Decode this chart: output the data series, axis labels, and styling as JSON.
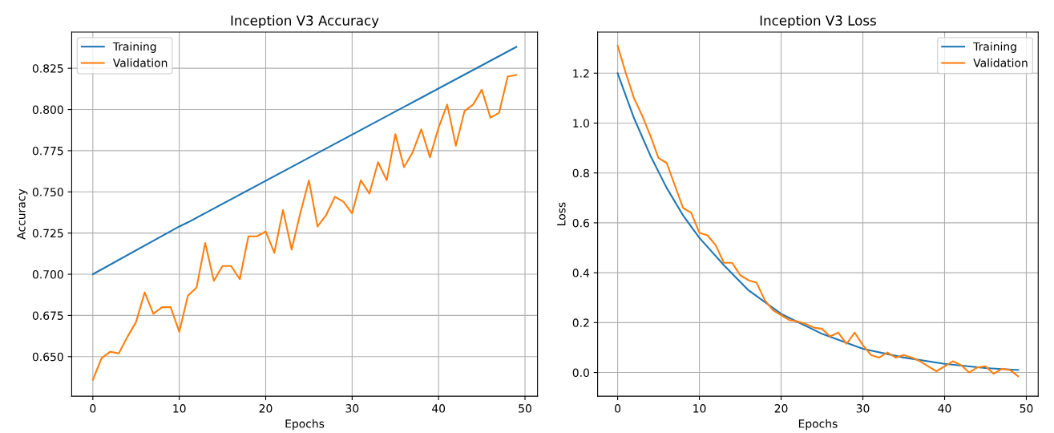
{
  "chart_data": [
    {
      "type": "line",
      "title": "Inception V3 Accuracy",
      "xlabel": "Epochs",
      "ylabel": "Accuracy",
      "xlim": [
        -2.45,
        51.45
      ],
      "xticks": [
        0,
        10,
        20,
        30,
        40,
        50
      ],
      "ylim": [
        0.626,
        0.847
      ],
      "yticks": [
        {
          "value": 0.65,
          "label": "0.650"
        },
        {
          "value": 0.675,
          "label": "0.675"
        },
        {
          "value": 0.7,
          "label": "0.700"
        },
        {
          "value": 0.725,
          "label": "0.725"
        },
        {
          "value": 0.75,
          "label": "0.750"
        },
        {
          "value": 0.775,
          "label": "0.775"
        },
        {
          "value": 0.8,
          "label": "0.800"
        },
        {
          "value": 0.825,
          "label": "0.825"
        }
      ],
      "grid": true,
      "legend": "top left",
      "series": [
        {
          "name": "Training",
          "color": "#1f77b4",
          "x": [
            0,
            10,
            11,
            49
          ],
          "values": [
            0.7,
            0.729,
            0.7315,
            0.838
          ]
        },
        {
          "name": "Validation",
          "color": "#ff7f0e",
          "x": [
            0,
            1,
            2,
            3,
            4,
            5,
            6,
            7,
            8,
            9,
            10,
            11,
            12,
            13,
            14,
            15,
            16,
            17,
            18,
            19,
            20,
            21,
            22,
            23,
            24,
            25,
            26,
            27,
            28,
            29,
            30,
            31,
            32,
            33,
            34,
            35,
            36,
            37,
            38,
            39,
            40,
            41,
            42,
            43,
            44,
            45,
            46,
            47,
            48,
            49
          ],
          "values": [
            0.636,
            0.649,
            0.653,
            0.652,
            0.662,
            0.671,
            0.689,
            0.676,
            0.68,
            0.68,
            0.665,
            0.687,
            0.692,
            0.719,
            0.696,
            0.705,
            0.705,
            0.697,
            0.723,
            0.723,
            0.726,
            0.713,
            0.739,
            0.715,
            0.737,
            0.757,
            0.729,
            0.736,
            0.747,
            0.744,
            0.737,
            0.757,
            0.749,
            0.768,
            0.757,
            0.785,
            0.765,
            0.774,
            0.788,
            0.771,
            0.789,
            0.803,
            0.778,
            0.799,
            0.803,
            0.812,
            0.795,
            0.798,
            0.82,
            0.821
          ]
        }
      ]
    },
    {
      "type": "line",
      "title": "Inception V3 Loss",
      "xlabel": "Epochs",
      "ylabel": "Loss",
      "xlim": [
        -2.45,
        51.45
      ],
      "xticks": [
        0,
        10,
        20,
        30,
        40,
        50
      ],
      "ylim": [
        -0.095,
        1.365
      ],
      "yticks": [
        {
          "value": 0,
          "label": "0.0"
        },
        {
          "value": 0.2,
          "label": "0.2"
        },
        {
          "value": 0.4,
          "label": "0.4"
        },
        {
          "value": 0.6,
          "label": "0.6"
        },
        {
          "value": 0.8,
          "label": "0.8"
        },
        {
          "value": 1.0,
          "label": "1.0"
        },
        {
          "value": 1.2,
          "label": "1.2"
        }
      ],
      "grid": true,
      "legend": "top right",
      "series": [
        {
          "name": "Training",
          "color": "#1f77b4",
          "x": [
            0,
            2,
            4,
            6,
            8,
            10,
            13,
            16,
            20,
            25,
            30,
            35,
            40,
            45,
            49
          ],
          "values": [
            1.2,
            1.02,
            0.87,
            0.74,
            0.63,
            0.54,
            0.43,
            0.33,
            0.235,
            0.155,
            0.095,
            0.06,
            0.035,
            0.018,
            0.01
          ]
        },
        {
          "name": "Validation",
          "color": "#ff7f0e",
          "x": [
            0,
            1,
            2,
            3,
            4,
            5,
            6,
            7,
            8,
            9,
            10,
            11,
            12,
            13,
            14,
            15,
            16,
            17,
            18,
            19,
            20,
            21,
            22,
            23,
            24,
            25,
            26,
            27,
            28,
            29,
            30,
            31,
            32,
            33,
            34,
            35,
            36,
            37,
            38,
            39,
            40,
            41,
            42,
            43,
            44,
            45,
            46,
            47,
            48,
            49
          ],
          "values": [
            1.31,
            1.2,
            1.1,
            1.03,
            0.95,
            0.86,
            0.84,
            0.75,
            0.66,
            0.64,
            0.56,
            0.55,
            0.51,
            0.44,
            0.44,
            0.39,
            0.37,
            0.36,
            0.29,
            0.25,
            0.23,
            0.21,
            0.205,
            0.195,
            0.18,
            0.175,
            0.145,
            0.16,
            0.115,
            0.16,
            0.11,
            0.07,
            0.06,
            0.08,
            0.06,
            0.07,
            0.06,
            0.045,
            0.025,
            0.005,
            0.025,
            0.045,
            0.03,
            0.0,
            0.02,
            0.025,
            -0.005,
            0.015,
            0.01,
            -0.015
          ]
        }
      ]
    }
  ]
}
